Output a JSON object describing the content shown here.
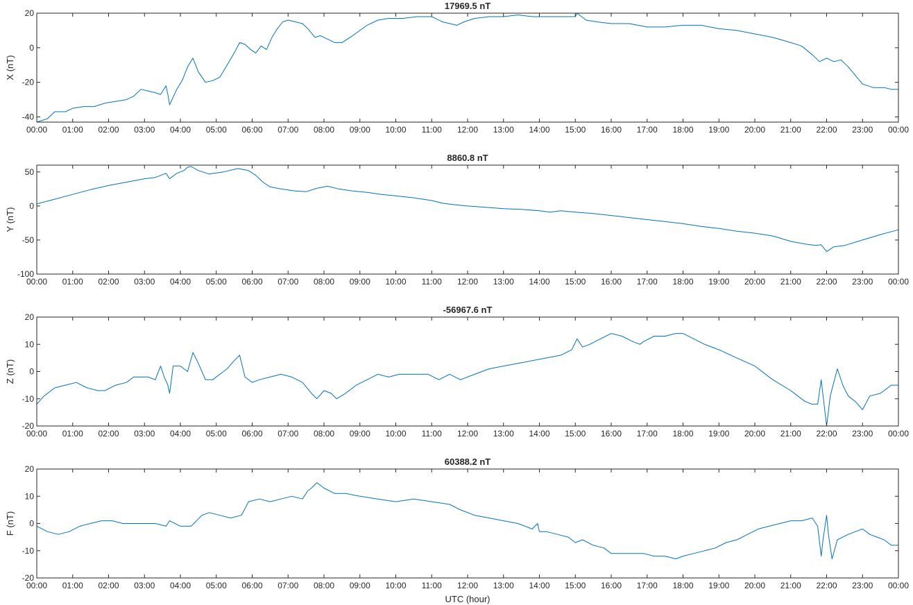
{
  "figure": {
    "xlabel": "UTC (hour)",
    "line_color": "#0072BD",
    "axis_color": "#262626",
    "x_tick_labels": [
      "00:00",
      "01:00",
      "02:00",
      "03:00",
      "04:00",
      "05:00",
      "06:00",
      "07:00",
      "08:00",
      "09:00",
      "10:00",
      "11:00",
      "12:00",
      "13:00",
      "14:00",
      "15:00",
      "16:00",
      "17:00",
      "18:00",
      "19:00",
      "20:00",
      "21:00",
      "22:00",
      "23:00",
      "00:00"
    ]
  },
  "chart_data": [
    {
      "type": "line",
      "title": "17969.5 nT",
      "ylabel": "X (nT)",
      "xlim": [
        0,
        24
      ],
      "ylim": [
        -43,
        20
      ],
      "yticks": [
        20,
        0,
        -20,
        -40
      ],
      "series": [
        {
          "x": [
            0,
            0.3,
            0.5,
            0.8,
            1,
            1.3,
            1.6,
            1.9,
            2.2,
            2.5,
            2.7,
            2.9,
            3.1,
            3.3,
            3.45,
            3.6,
            3.65,
            3.7,
            3.9,
            4.05,
            4.2,
            4.35,
            4.5,
            4.7,
            4.9,
            5.1,
            5.3,
            5.5,
            5.65,
            5.8,
            5.95,
            6.1,
            6.25,
            6.4,
            6.55,
            6.7,
            6.85,
            7,
            7.2,
            7.4,
            7.55,
            7.75,
            7.9,
            8.1,
            8.3,
            8.5,
            8.8,
            9.2,
            9.5,
            9.8,
            10.2,
            10.6,
            11,
            11.3,
            11.5,
            11.7,
            11.9,
            12.2,
            12.6,
            13,
            13.4,
            13.8,
            14.2,
            14.6,
            15,
            15.05,
            15.3,
            15.6,
            16,
            16.5,
            17,
            17.5,
            18,
            18.5,
            19,
            19.5,
            20,
            20.5,
            21,
            21.3,
            21.6,
            21.8,
            22,
            22.2,
            22.4,
            22.6,
            22.8,
            23,
            23.3,
            23.6,
            23.8,
            24
          ],
          "y": [
            -43,
            -41,
            -37,
            -37,
            -35,
            -34,
            -34,
            -32,
            -31,
            -30,
            -28,
            -24,
            -25,
            -26,
            -27,
            -22,
            -27,
            -33,
            -24,
            -19,
            -11,
            -6,
            -14,
            -20,
            -19,
            -17,
            -10,
            -3,
            3,
            2,
            -1,
            -3,
            1,
            -1,
            6,
            11,
            15,
            16,
            15,
            14,
            11,
            6,
            7,
            5,
            3,
            3,
            7,
            13,
            16,
            17,
            17,
            18,
            18,
            15,
            14,
            13,
            15,
            17,
            18,
            18,
            19,
            18,
            18,
            18,
            18,
            20,
            16,
            15,
            14,
            14,
            12,
            12,
            13,
            13,
            11,
            10,
            8,
            6,
            3,
            1,
            -4,
            -8,
            -6,
            -8,
            -7,
            -11,
            -16,
            -21,
            -23,
            -23,
            -24,
            -24
          ]
        }
      ]
    },
    {
      "type": "line",
      "title": "8860.8 nT",
      "ylabel": "Y (nT)",
      "xlim": [
        0,
        24
      ],
      "ylim": [
        -100,
        60
      ],
      "yticks": [
        50,
        0,
        -50,
        -100
      ],
      "series": [
        {
          "x": [
            0,
            0.5,
            1,
            1.5,
            2,
            2.5,
            3,
            3.3,
            3.6,
            3.7,
            3.9,
            4.1,
            4.2,
            4.3,
            4.5,
            4.8,
            5.2,
            5.6,
            5.9,
            6.1,
            6.3,
            6.5,
            6.8,
            7.2,
            7.5,
            7.8,
            8.1,
            8.4,
            8.8,
            9.2,
            9.6,
            10,
            10.5,
            11,
            11.3,
            11.6,
            12,
            12.5,
            13,
            13.5,
            14,
            14.3,
            14.6,
            15,
            15.5,
            16,
            16.5,
            17,
            17.5,
            18,
            18.5,
            19,
            19.5,
            20,
            20.5,
            21,
            21.4,
            21.7,
            21.85,
            22,
            22.2,
            22.5,
            23,
            23.5,
            24
          ],
          "y": [
            3,
            10,
            17,
            24,
            30,
            35,
            40,
            42,
            48,
            40,
            48,
            52,
            57,
            58,
            52,
            47,
            50,
            55,
            52,
            45,
            35,
            28,
            25,
            22,
            21,
            26,
            29,
            25,
            22,
            20,
            17,
            15,
            12,
            8,
            4,
            2,
            0,
            -2,
            -4,
            -5,
            -7,
            -9,
            -7,
            -9,
            -11,
            -14,
            -17,
            -20,
            -23,
            -26,
            -30,
            -33,
            -37,
            -40,
            -44,
            -52,
            -56,
            -58,
            -57,
            -67,
            -60,
            -58,
            -50,
            -42,
            -35
          ]
        }
      ]
    },
    {
      "type": "line",
      "title": "-56967.6 nT",
      "ylabel": "Z (nT)",
      "xlim": [
        0,
        24
      ],
      "ylim": [
        -20,
        20
      ],
      "yticks": [
        20,
        10,
        0,
        -10,
        -20
      ],
      "series": [
        {
          "x": [
            0,
            0.2,
            0.5,
            0.8,
            1.1,
            1.4,
            1.7,
            1.9,
            2.2,
            2.5,
            2.7,
            2.9,
            3.1,
            3.3,
            3.45,
            3.55,
            3.65,
            3.7,
            3.8,
            4,
            4.2,
            4.35,
            4.5,
            4.7,
            4.9,
            5.1,
            5.3,
            5.5,
            5.65,
            5.8,
            6,
            6.2,
            6.5,
            6.8,
            7.1,
            7.4,
            7.65,
            7.8,
            8,
            8.2,
            8.35,
            8.6,
            8.9,
            9.2,
            9.5,
            9.8,
            10.1,
            10.5,
            10.9,
            11.2,
            11.5,
            11.8,
            12.2,
            12.6,
            13,
            13.4,
            13.8,
            14.2,
            14.6,
            14.9,
            15.05,
            15.2,
            15.4,
            15.7,
            16,
            16.3,
            16.6,
            16.8,
            16.9,
            17.2,
            17.5,
            17.8,
            18,
            18.3,
            18.6,
            19,
            19.5,
            20,
            20.5,
            21,
            21.4,
            21.6,
            21.75,
            21.85,
            22,
            22.1,
            22.3,
            22.45,
            22.6,
            22.8,
            23,
            23.2,
            23.5,
            23.8,
            24
          ],
          "y": [
            -12,
            -9,
            -6,
            -5,
            -4,
            -6,
            -7,
            -7,
            -5,
            -4,
            -2,
            -2,
            -2,
            -3,
            2,
            -2,
            -5,
            -8,
            2,
            2,
            0,
            7,
            3,
            -3,
            -3,
            -1,
            1,
            4,
            6,
            -2,
            -4,
            -3,
            -2,
            -1,
            -2,
            -4,
            -8,
            -10,
            -7,
            -8,
            -10,
            -8,
            -5,
            -3,
            -1,
            -2,
            -1,
            -1,
            -1,
            -3,
            -1,
            -3,
            -1,
            1,
            2,
            3,
            4,
            5,
            6,
            8,
            12,
            9,
            10,
            12,
            14,
            13,
            11,
            10,
            11,
            13,
            13,
            14,
            14,
            12,
            10,
            8,
            5,
            2,
            -3,
            -7,
            -11,
            -12,
            -12,
            -3,
            -20,
            -9,
            1,
            -5,
            -9,
            -11,
            -14,
            -9,
            -8,
            -5,
            -5
          ]
        }
      ]
    },
    {
      "type": "line",
      "title": "60388.2 nT",
      "ylabel": "F (nT)",
      "xlim": [
        0,
        24
      ],
      "ylim": [
        -20,
        20
      ],
      "yticks": [
        20,
        10,
        0,
        -10,
        -20
      ],
      "series": [
        {
          "x": [
            0,
            0.3,
            0.6,
            0.9,
            1.2,
            1.5,
            1.8,
            2.1,
            2.4,
            2.7,
            3,
            3.3,
            3.6,
            3.7,
            4,
            4.3,
            4.6,
            4.8,
            5.1,
            5.4,
            5.7,
            5.9,
            6.2,
            6.5,
            6.8,
            7.1,
            7.4,
            7.55,
            7.65,
            7.8,
            8,
            8.3,
            8.6,
            9,
            9.5,
            10,
            10.5,
            11,
            11.5,
            11.8,
            12.2,
            12.6,
            13,
            13.4,
            13.8,
            13.95,
            14,
            14.2,
            14.5,
            14.8,
            15,
            15.2,
            15.5,
            15.8,
            16,
            16.3,
            16.6,
            16.9,
            17.2,
            17.5,
            17.8,
            18,
            18.3,
            18.6,
            18.9,
            19.2,
            19.5,
            19.8,
            20.1,
            20.4,
            20.7,
            21,
            21.3,
            21.6,
            21.75,
            21.85,
            21.9,
            22,
            22.05,
            22.15,
            22.3,
            22.45,
            22.6,
            22.8,
            23,
            23.2,
            23.4,
            23.6,
            23.8,
            24
          ],
          "y": [
            -1,
            -3,
            -4,
            -3,
            -1,
            0,
            1,
            1,
            0,
            0,
            0,
            0,
            -1,
            1,
            -1,
            -1,
            3,
            4,
            3,
            2,
            3,
            8,
            9,
            8,
            9,
            10,
            9,
            12,
            13,
            15,
            13,
            11,
            11,
            10,
            9,
            8,
            9,
            8,
            7,
            5,
            3,
            2,
            1,
            0,
            -2,
            0,
            -3,
            -3,
            -4,
            -5,
            -7,
            -6,
            -8,
            -9,
            -11,
            -11,
            -11,
            -11,
            -12,
            -12,
            -13,
            -12,
            -11,
            -10,
            -9,
            -7,
            -6,
            -4,
            -2,
            -1,
            0,
            1,
            1,
            2,
            -1,
            -12,
            -6,
            3,
            -4,
            -13,
            -6,
            -5,
            -4,
            -3,
            -2,
            -4,
            -5,
            -6,
            -8,
            -8
          ]
        }
      ]
    }
  ]
}
